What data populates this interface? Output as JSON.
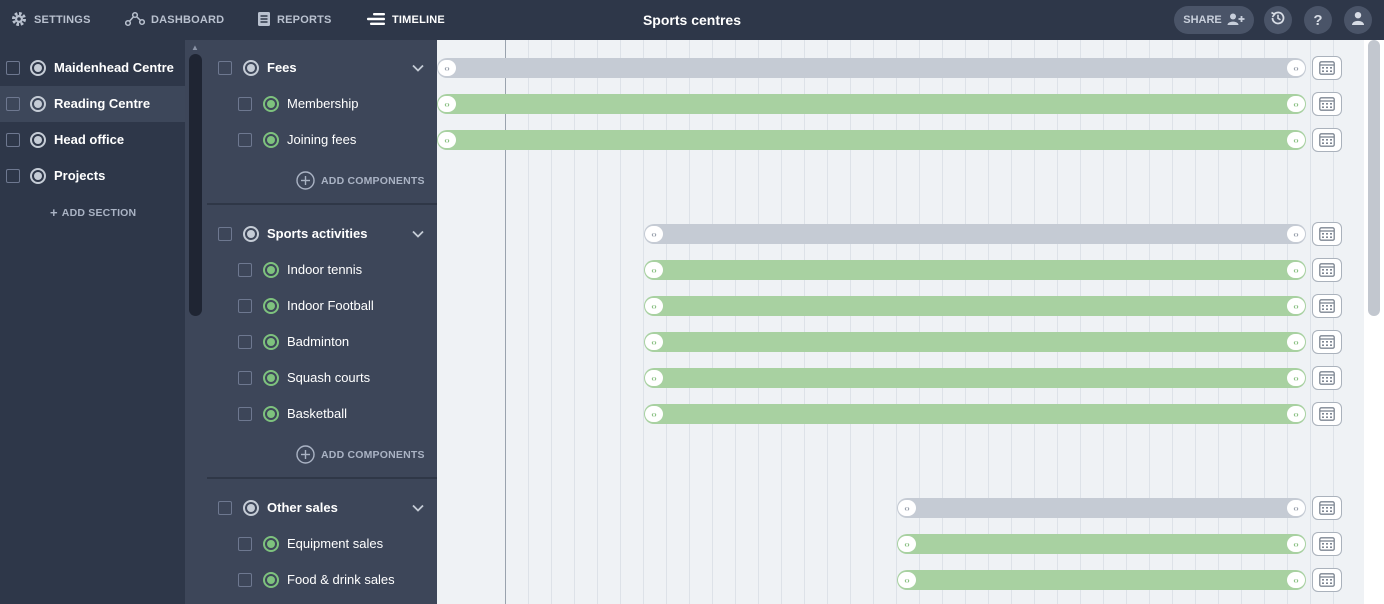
{
  "topbar": {
    "nav": [
      {
        "label": "SETTINGS",
        "icon": "gear-icon"
      },
      {
        "label": "DASHBOARD",
        "icon": "dashboard-icon"
      },
      {
        "label": "REPORTS",
        "icon": "reports-icon"
      },
      {
        "label": "TIMELINE",
        "icon": "timeline-icon",
        "active": true
      }
    ],
    "title": "Sports centres",
    "share_label": "SHARE",
    "history_icon": "history-icon",
    "help_label": "?",
    "user_icon": "user-icon"
  },
  "sections": {
    "items": [
      {
        "label": "Maidenhead Centre",
        "selected": false
      },
      {
        "label": "Reading Centre",
        "selected": true
      },
      {
        "label": "Head office",
        "selected": false
      },
      {
        "label": "Projects",
        "selected": false
      }
    ],
    "add_label": "ADD SECTION"
  },
  "components": {
    "groups": [
      {
        "label": "Fees",
        "items": [
          {
            "label": "Membership"
          },
          {
            "label": "Joining fees"
          }
        ]
      },
      {
        "label": "Sports activities",
        "items": [
          {
            "label": "Indoor tennis"
          },
          {
            "label": "Indoor Football"
          },
          {
            "label": "Badminton"
          },
          {
            "label": "Squash courts"
          },
          {
            "label": "Basketball"
          }
        ]
      },
      {
        "label": "Other sales",
        "items": [
          {
            "label": "Equipment sales"
          },
          {
            "label": "Food & drink sales"
          }
        ]
      }
    ],
    "add_label": "ADD COMPONENTS"
  },
  "colors": {
    "sidebar_bg": "#2e3749",
    "panel_bg": "#3d4659",
    "timeline_bg": "#eff2f5",
    "bar_gray": "#c5cbd4",
    "bar_green": "#a8d1a1",
    "status_green": "#7ec27e"
  }
}
